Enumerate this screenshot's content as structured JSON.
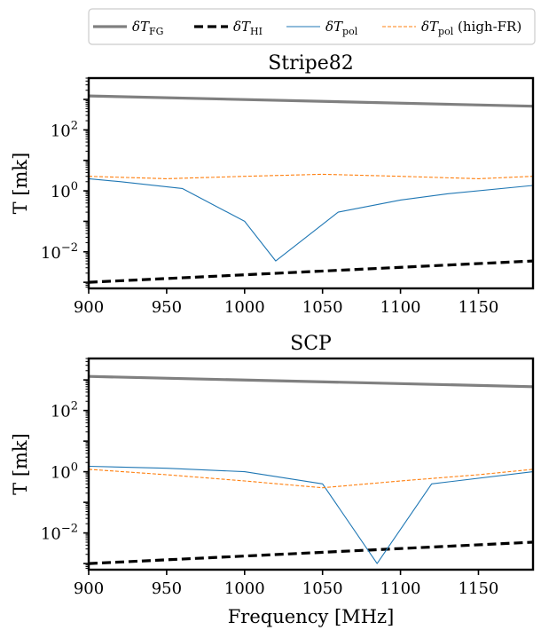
{
  "legend": [
    {
      "symbol": "δT",
      "sub": "FG",
      "suffix": "",
      "color": "#808080",
      "style": "solid-thick"
    },
    {
      "symbol": "δT",
      "sub": "HI",
      "suffix": "",
      "color": "#000000",
      "style": "dashed-thick"
    },
    {
      "symbol": "δT",
      "sub": "pol",
      "suffix": "",
      "color": "#1f77b4",
      "style": "solid-thin"
    },
    {
      "symbol": "δT",
      "sub": "pol",
      "suffix": " (high-FR)",
      "color": "#ff7f0e",
      "style": "dashed-thin"
    }
  ],
  "chart_data": [
    {
      "type": "line",
      "title": "Stripe82",
      "xlabel": "",
      "ylabel": "T [mk]",
      "xlim": [
        900,
        1185
      ],
      "ylim_log10": [
        -3.2,
        3.7
      ],
      "y_scale": "log",
      "xticks": [
        900,
        950,
        1000,
        1050,
        1100,
        1150
      ],
      "yticks": [
        {
          "value": -2,
          "label": "10^-2"
        },
        {
          "value": 0,
          "label": "10^0"
        },
        {
          "value": 2,
          "label": "10^2"
        }
      ],
      "series": [
        {
          "color": "#808080",
          "style": "solid-thick",
          "x": [
            900,
            1185
          ],
          "y": [
            1300,
            600
          ]
        },
        {
          "color": "#000000",
          "style": "dashed-thick",
          "x": [
            900,
            1185
          ],
          "y_range": [
            0.001,
            0.005
          ]
        },
        {
          "color": "#1f77b4",
          "style": "solid-thin",
          "x": [
            900,
            920,
            960,
            1000,
            1020,
            1060,
            1100,
            1130,
            1185
          ],
          "y": [
            2.5,
            2,
            1.2,
            0.1,
            0.005,
            0.2,
            0.5,
            0.8,
            1.5
          ]
        },
        {
          "color": "#ff7f0e",
          "style": "dashed-thin",
          "x": [
            900,
            950,
            1000,
            1050,
            1100,
            1150,
            1185
          ],
          "y": [
            3,
            2.5,
            3,
            3.5,
            3,
            2.5,
            3
          ]
        }
      ]
    },
    {
      "type": "line",
      "title": "SCP",
      "xlabel": "Frequency [MHz]",
      "ylabel": "T [mk]",
      "xlim": [
        900,
        1185
      ],
      "ylim_log10": [
        -3.2,
        3.7
      ],
      "y_scale": "log",
      "xticks": [
        900,
        950,
        1000,
        1050,
        1100,
        1150
      ],
      "yticks": [
        {
          "value": -2,
          "label": "10^-2"
        },
        {
          "value": 0,
          "label": "10^0"
        },
        {
          "value": 2,
          "label": "10^2"
        }
      ],
      "series": [
        {
          "color": "#808080",
          "style": "solid-thick",
          "x": [
            900,
            1185
          ],
          "y": [
            1300,
            600
          ]
        },
        {
          "color": "#000000",
          "style": "dashed-thick",
          "x": [
            900,
            1185
          ],
          "y_range": [
            0.001,
            0.005
          ]
        },
        {
          "color": "#1f77b4",
          "style": "solid-thin",
          "x": [
            900,
            950,
            1000,
            1050,
            1085,
            1120,
            1185
          ],
          "y": [
            1.5,
            1.3,
            1,
            0.4,
            0.001,
            0.4,
            1
          ]
        },
        {
          "color": "#ff7f0e",
          "style": "dashed-thin",
          "x": [
            900,
            950,
            1000,
            1050,
            1100,
            1150,
            1185
          ],
          "y": [
            1.2,
            0.8,
            0.5,
            0.3,
            0.5,
            0.8,
            1.2
          ]
        }
      ]
    }
  ]
}
